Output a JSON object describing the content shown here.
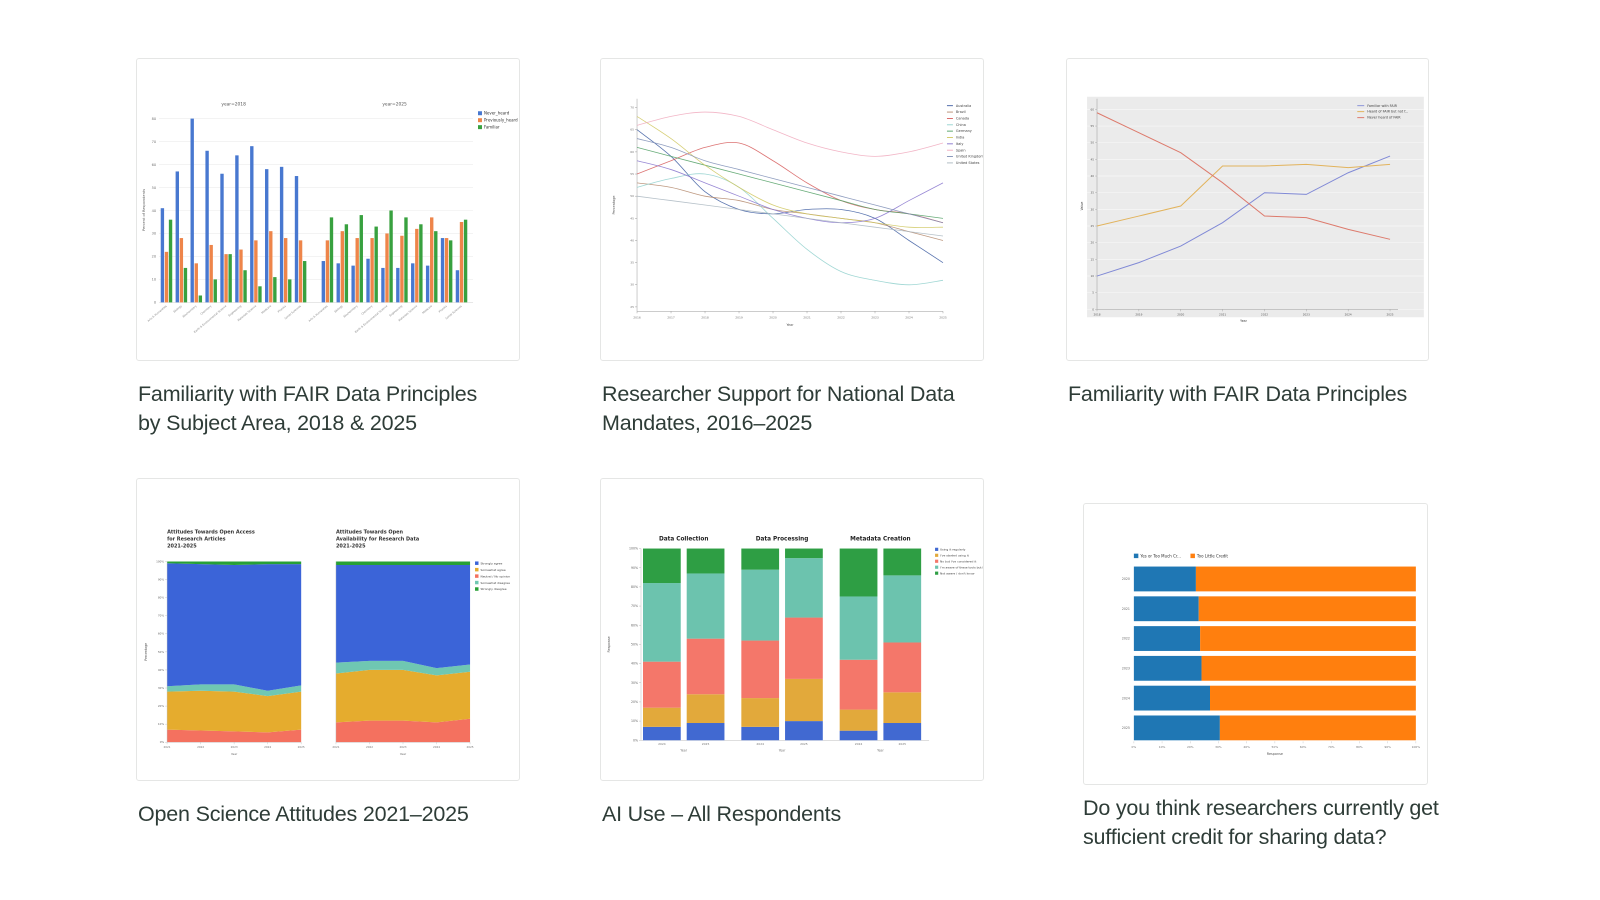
{
  "page": {
    "background": "#ffffff",
    "caption_color": "#2e3c37"
  },
  "tiles": [
    {
      "caption": "Familiarity with FAIR Data Principles\nby Subject Area, 2018 & 2025"
    },
    {
      "caption": "Researcher Support for National Data\nMandates, 2016–2025"
    },
    {
      "caption": "Familiarity with FAIR Data Principles"
    },
    {
      "caption": "Open Science Attitudes 2021–2025"
    },
    {
      "caption": "AI Use – All Respondents"
    },
    {
      "caption": "Do you think researchers currently get\nsufficient credit for sharing data?"
    }
  ],
  "chart_data": [
    {
      "type": "bar",
      "variant": "grouped-faceted",
      "ylabel": "Percent of Respondents",
      "ylim": [
        0,
        80
      ],
      "yticks": [
        0,
        10,
        20,
        30,
        40,
        50,
        60,
        70,
        80
      ],
      "legend": [
        "Never_heard",
        "Previously_heard",
        "Familiar"
      ],
      "colors": [
        "#4878d0",
        "#ee854a",
        "#38a13f"
      ],
      "categories": [
        "Arts & Humanities",
        "Biology",
        "Biochemistry",
        "Chemistry",
        "Earth & Environmental Science",
        "Engineering",
        "Materials Science",
        "Medicine",
        "Physics",
        "Social Sciences"
      ],
      "facets": [
        {
          "label": "year=2018",
          "series": [
            {
              "name": "Never_heard",
              "values": [
                41,
                57,
                80,
                66,
                56,
                64,
                68,
                58,
                59,
                55
              ]
            },
            {
              "name": "Previously_heard",
              "values": [
                22,
                28,
                17,
                25,
                21,
                23,
                27,
                31,
                28,
                27
              ]
            },
            {
              "name": "Familiar",
              "values": [
                36,
                15,
                3,
                10,
                21,
                14,
                7,
                11,
                10,
                18
              ]
            }
          ]
        },
        {
          "label": "year=2025",
          "series": [
            {
              "name": "Never_heard",
              "values": [
                18,
                17,
                16,
                19,
                15,
                15,
                17,
                16,
                28,
                14
              ]
            },
            {
              "name": "Previously_heard",
              "values": [
                27,
                31,
                28,
                28,
                30,
                29,
                32,
                37,
                28,
                35
              ]
            },
            {
              "name": "Familiar",
              "values": [
                37,
                34,
                38,
                33,
                40,
                37,
                34,
                31,
                27,
                36
              ]
            }
          ]
        }
      ]
    },
    {
      "type": "line",
      "xlabel": "Year",
      "ylabel": "Percentage",
      "x": [
        2016,
        2017,
        2018,
        2019,
        2020,
        2021,
        2022,
        2023,
        2024,
        2025
      ],
      "ylim": [
        24,
        72
      ],
      "yticks": [
        25,
        30,
        35,
        40,
        45,
        50,
        55,
        60,
        65,
        70
      ],
      "smooth": true,
      "legend_position": "right",
      "series": [
        {
          "name": "Australia",
          "color": "#3b5aa0",
          "values": [
            65,
            59,
            51,
            47,
            46,
            47,
            47,
            45,
            40,
            35
          ]
        },
        {
          "name": "Brazil",
          "color": "#b3876b",
          "values": [
            53,
            52,
            50,
            49,
            47,
            46,
            45,
            44,
            42,
            40
          ]
        },
        {
          "name": "Canada",
          "color": "#d65a5a",
          "values": [
            55,
            58,
            61,
            62,
            58,
            53,
            49,
            47,
            46,
            44
          ]
        },
        {
          "name": "China",
          "color": "#8fd0cd",
          "values": [
            52,
            54,
            55,
            52,
            45,
            38,
            33,
            31,
            30,
            31
          ]
        },
        {
          "name": "Germany",
          "color": "#4e9e62",
          "values": [
            61,
            59,
            57,
            55,
            53,
            51,
            49,
            47,
            46,
            45
          ]
        },
        {
          "name": "India",
          "color": "#cfc75e",
          "values": [
            68,
            63,
            57,
            52,
            48,
            46,
            45,
            44,
            43,
            43
          ]
        },
        {
          "name": "Italy",
          "color": "#8572cc",
          "values": [
            58,
            56,
            53,
            50,
            47,
            45,
            44,
            45,
            49,
            53
          ]
        },
        {
          "name": "Spain",
          "color": "#f0a8bc",
          "values": [
            66,
            68,
            69,
            68,
            65,
            62,
            60,
            59,
            60,
            62
          ]
        },
        {
          "name": "United Kingdom",
          "color": "#7c8db5",
          "values": [
            63,
            61,
            58,
            56,
            54,
            52,
            50,
            48,
            46,
            44
          ]
        },
        {
          "name": "United States",
          "color": "#a9b6bf",
          "values": [
            50,
            49,
            48,
            47,
            46,
            45,
            44,
            43,
            42,
            41
          ]
        }
      ]
    },
    {
      "type": "line",
      "panel_bg": "#ebebeb",
      "xlabel": "Year",
      "ylabel": "Value",
      "x": [
        2018,
        2019,
        2020,
        2021,
        2022,
        2023,
        2024,
        2025
      ],
      "ylim": [
        0,
        62
      ],
      "yticks": [
        0,
        5,
        10,
        15,
        20,
        25,
        30,
        35,
        40,
        45,
        50,
        55,
        60
      ],
      "legend_position": "top-right",
      "series": [
        {
          "name": "Familiar with FAIR",
          "color": "#8089d6",
          "values": [
            10,
            14,
            19,
            26,
            35,
            34.5,
            41,
            46
          ]
        },
        {
          "name": "Heard of FAIR but not f...",
          "color": "#e2b35c",
          "values": [
            25,
            28,
            31,
            43,
            43,
            43.5,
            42.5,
            43.5
          ]
        },
        {
          "name": "Never heard of FAIR",
          "color": "#dd7a6c",
          "values": [
            59,
            53,
            47,
            38,
            28,
            27.5,
            24,
            21
          ]
        }
      ]
    },
    {
      "type": "area",
      "ylabel": "Percentage",
      "xlabel": "Year",
      "x": [
        2021,
        2022,
        2023,
        2024,
        2025
      ],
      "yticks": [
        "0%",
        "10%",
        "20%",
        "30%",
        "40%",
        "50%",
        "60%",
        "70%",
        "80%",
        "90%",
        "100%"
      ],
      "legend": [
        {
          "label": "Strongly agree",
          "color": "#3b64d8"
        },
        {
          "label": "Somewhat agree",
          "color": "#e5ac2e"
        },
        {
          "label": "Neutral / No opinion",
          "color": "#f4715f"
        },
        {
          "label": "Somewhat disagree",
          "color": "#6fc7b2"
        },
        {
          "label": "Strongly disagree",
          "color": "#27a036"
        }
      ],
      "panels": [
        {
          "title": "Attitudes Towards Open Access\nfor Research Articles\n2021-2025",
          "layers": [
            {
              "name": "Neutral / No opinion",
              "color": "#f4715f",
              "values": [
                7,
                6.5,
                6,
                5.5,
                7
              ]
            },
            {
              "name": "Somewhat agree",
              "color": "#e5ac2e",
              "values": [
                21,
                22,
                22,
                20,
                21
              ]
            },
            {
              "name": "Somewhat disagree",
              "color": "#6fc7b2",
              "values": [
                3,
                3.5,
                4,
                3,
                3.5
              ]
            },
            {
              "name": "Strongly agree",
              "color": "#3b64d8",
              "values": [
                68,
                66.5,
                66,
                70,
                67
              ]
            },
            {
              "name": "Strongly disagree",
              "color": "#27a036",
              "values": [
                1,
                1.5,
                2,
                1.5,
                1.5
              ]
            }
          ]
        },
        {
          "title": "Attitudes Towards Open\nAvailability for Research Data\n2021-2025",
          "layers": [
            {
              "name": "Neutral / No opinion",
              "color": "#f4715f",
              "values": [
                11,
                12,
                12,
                11,
                13
              ]
            },
            {
              "name": "Somewhat agree",
              "color": "#e5ac2e",
              "values": [
                27,
                28,
                28,
                26,
                26
              ]
            },
            {
              "name": "Somewhat disagree",
              "color": "#6fc7b2",
              "values": [
                6,
                5,
                5,
                4,
                4
              ]
            },
            {
              "name": "Strongly agree",
              "color": "#3b64d8",
              "values": [
                54,
                53,
                53,
                57,
                55
              ]
            },
            {
              "name": "Strongly disagree",
              "color": "#27a036",
              "values": [
                2,
                2,
                2,
                2,
                2
              ]
            }
          ]
        }
      ]
    },
    {
      "type": "bar",
      "variant": "stacked-faceted",
      "ylabel": "Response",
      "xlabel": "Year",
      "yticks": [
        "0%",
        "10%",
        "20%",
        "30%",
        "40%",
        "50%",
        "60%",
        "70%",
        "80%",
        "90%",
        "100%"
      ],
      "years": [
        "2024",
        "2025"
      ],
      "legend": [
        "Using it regularly",
        "I've started using it",
        "No but I've considered it",
        "I'm aware of these tools but hav...",
        "Not aware / don't know"
      ],
      "colors": [
        "#4169d1",
        "#e2a93b",
        "#f4776a",
        "#6cc3ae",
        "#2e9e44"
      ],
      "facets": [
        {
          "title": "Data Collection",
          "bars": [
            [
              7,
              10,
              24,
              41,
              18
            ],
            [
              9,
              15,
              29,
              34,
              13
            ]
          ]
        },
        {
          "title": "Data Processing",
          "bars": [
            [
              7,
              15,
              30,
              37,
              11
            ],
            [
              10,
              22,
              32,
              31,
              5
            ]
          ]
        },
        {
          "title": "Metadata Creation",
          "bars": [
            [
              5,
              11,
              26,
              33,
              25
            ],
            [
              9,
              16,
              26,
              35,
              14
            ]
          ]
        }
      ]
    },
    {
      "type": "bar",
      "variant": "horizontal-stacked",
      "xlabel": "Response",
      "categories": [
        "2020",
        "2021",
        "2022",
        "2023",
        "2024",
        "2025"
      ],
      "xticks": [
        "0%",
        "10%",
        "20%",
        "30%",
        "40%",
        "50%",
        "60%",
        "70%",
        "80%",
        "90%",
        "100%"
      ],
      "series": [
        {
          "name": "Yes or Too Much Cr...",
          "color": "#1f77b4",
          "values": [
            22,
            23,
            23.5,
            24,
            27,
            30.5
          ]
        },
        {
          "name": "Too Little Credit",
          "color": "#ff7f0e",
          "values": [
            78,
            77,
            76.5,
            76,
            73,
            69.5
          ]
        }
      ]
    }
  ]
}
